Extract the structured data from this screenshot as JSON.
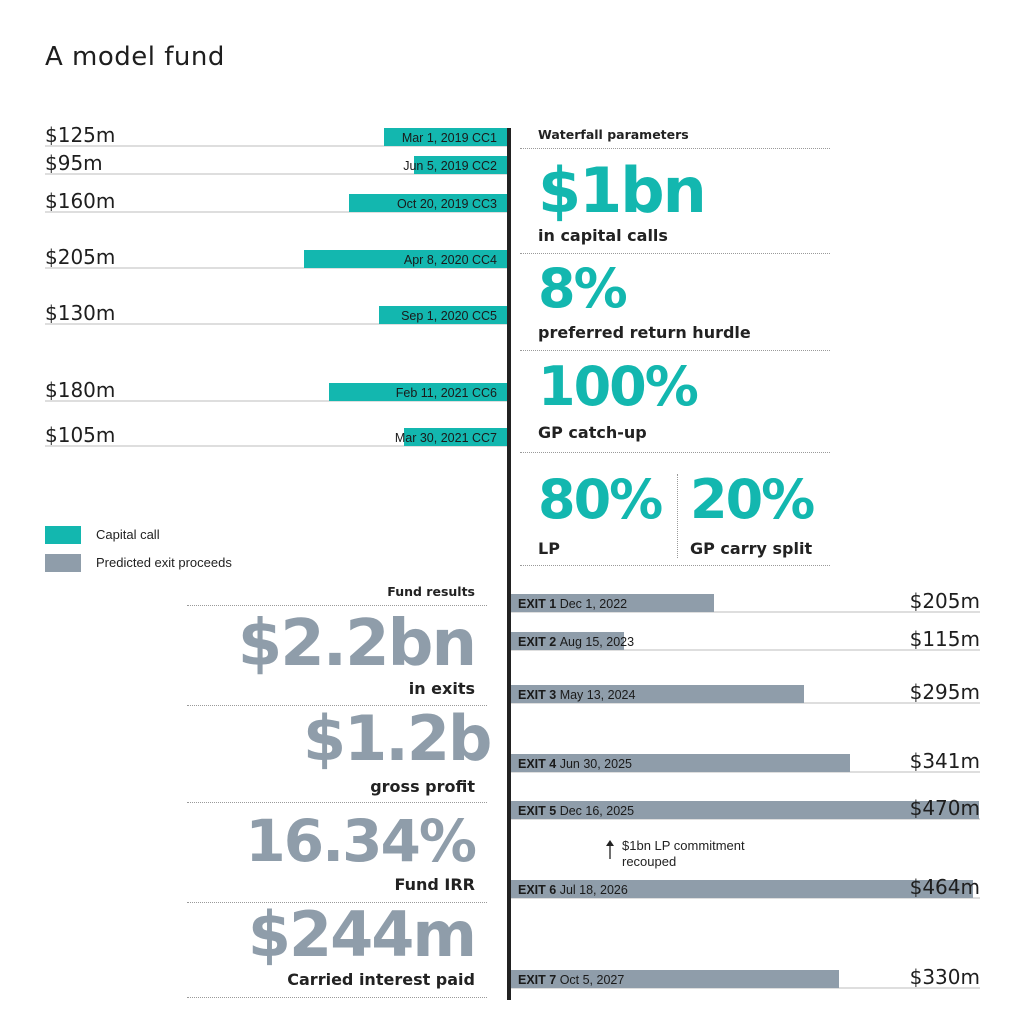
{
  "title": "A model fund",
  "colors": {
    "capital_call": "#13b7af",
    "exit": "#8f9daa",
    "text": "#222222"
  },
  "legend": [
    {
      "label": "Capital call",
      "color": "#13b7af"
    },
    {
      "label": "Predicted exit proceeds",
      "color": "#8f9daa"
    }
  ],
  "waterfall": {
    "title": "Waterfall parameters",
    "capital_calls": {
      "value": "$1bn",
      "label": "in capital calls"
    },
    "hurdle": {
      "value": "8%",
      "label": "preferred return hurdle"
    },
    "catch_up": {
      "value": "100%",
      "label": "GP catch-up"
    },
    "lp_split": {
      "value": "80%",
      "label": "LP"
    },
    "gp_split": {
      "value": "20%",
      "label": "GP carry split"
    }
  },
  "results": {
    "title": "Fund results",
    "exits": {
      "value": "$2.2bn",
      "label": "in exits"
    },
    "profit": {
      "value": "$1.2b",
      "label": "gross profit"
    },
    "irr": {
      "value": "16.34%",
      "label": "Fund IRR"
    },
    "carry": {
      "value": "$244m",
      "label": "Carried interest paid"
    }
  },
  "annotation": "$1bn LP commitment recouped",
  "chart_data": [
    {
      "type": "bar",
      "orientation": "horizontal",
      "series_name": "Capital call",
      "items": [
        {
          "label": "Mar 1, 2019  CC1",
          "value": 125,
          "value_label": "$125m"
        },
        {
          "label": "Jun 5, 2019  CC2",
          "value": 95,
          "value_label": "$95m"
        },
        {
          "label": "Oct 20, 2019 CC3",
          "value": 160,
          "value_label": "$160m"
        },
        {
          "label": "Apr 8, 2020 CC4",
          "value": 205,
          "value_label": "$205m"
        },
        {
          "label": "Sep 1, 2020 CC5",
          "value": 130,
          "value_label": "$130m"
        },
        {
          "label": "Feb 11, 2021 CC6",
          "value": 180,
          "value_label": "$180m"
        },
        {
          "label": "Mar 30, 2021 CC7",
          "value": 105,
          "value_label": "$105m"
        }
      ]
    },
    {
      "type": "bar",
      "orientation": "horizontal",
      "series_name": "Predicted exit proceeds",
      "items": [
        {
          "label": "EXIT 1",
          "date": "Dec 1, 2022",
          "value": 205,
          "value_label": "$205m"
        },
        {
          "label": "EXIT 2",
          "date": "Aug 15, 2023",
          "value": 115,
          "value_label": "$115m"
        },
        {
          "label": "EXIT 3",
          "date": "May 13, 2024",
          "value": 295,
          "value_label": "$295m"
        },
        {
          "label": "EXIT 4",
          "date": "Jun 30, 2025",
          "value": 341,
          "value_label": "$341m"
        },
        {
          "label": "EXIT 5",
          "date": "Dec 16, 2025",
          "value": 470,
          "value_label": "$470m"
        },
        {
          "label": "EXIT 6",
          "date": "Jul 18, 2026",
          "value": 464,
          "value_label": "$464m"
        },
        {
          "label": "EXIT 7",
          "date": "Oct 5, 2027",
          "value": 330,
          "value_label": "$330m"
        }
      ]
    }
  ]
}
